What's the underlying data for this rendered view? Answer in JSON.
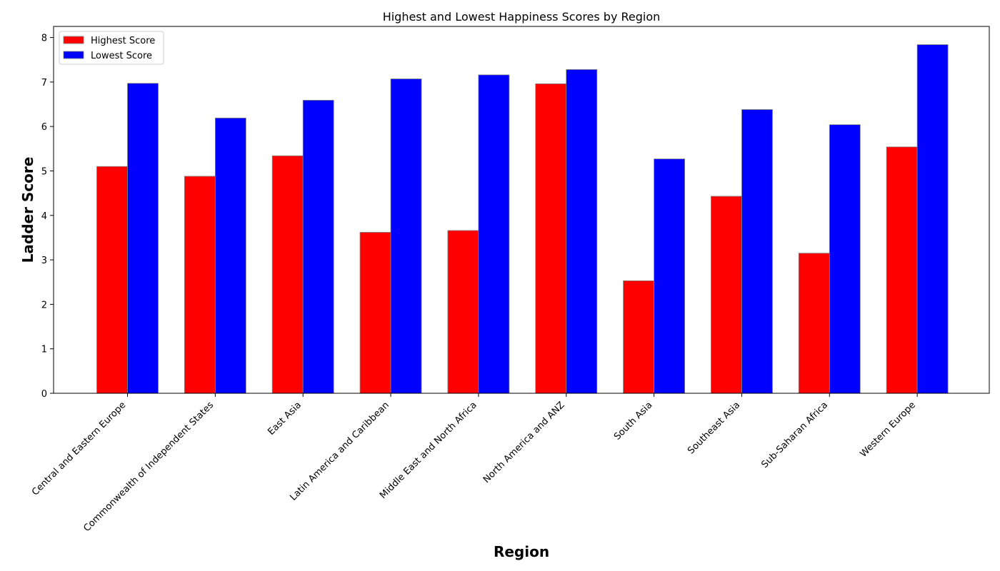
{
  "chart_data": {
    "type": "bar",
    "title": "Highest and Lowest Happiness Scores by Region",
    "xlabel": "Region",
    "ylabel": "Ladder Score",
    "ylim": [
      0,
      8.25
    ],
    "yticks": [
      0,
      1,
      2,
      3,
      4,
      5,
      6,
      7,
      8
    ],
    "grid": false,
    "legend_position": "top-left",
    "categories": [
      "Central and Eastern Europe",
      "Commonwealth of Independent States",
      "East Asia",
      "Latin America and Caribbean",
      "Middle East and North Africa",
      "North America and ANZ",
      "South Asia",
      "Southeast Asia",
      "Sub-Saharan Africa",
      "Western Europe"
    ],
    "series": [
      {
        "name": "Highest Score",
        "color": "#ff0000",
        "values": [
          5.1,
          4.88,
          5.34,
          3.62,
          3.66,
          6.96,
          2.53,
          4.43,
          3.15,
          5.54
        ]
      },
      {
        "name": "Lowest Score",
        "color": "#0000ff",
        "values": [
          6.97,
          6.19,
          6.59,
          7.07,
          7.16,
          7.28,
          5.27,
          6.38,
          6.04,
          7.84
        ]
      }
    ]
  }
}
